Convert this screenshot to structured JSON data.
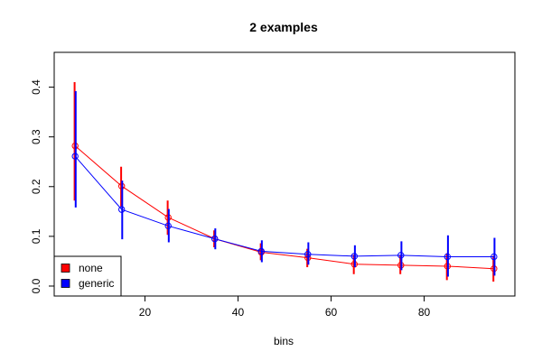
{
  "chart_data": {
    "type": "line",
    "title": "2 examples",
    "xlabel": "bins",
    "ylabel": "",
    "xlim": [
      0.5,
      99.5
    ],
    "ylim": [
      -0.02,
      0.47
    ],
    "x_ticks": [
      20,
      40,
      60,
      80
    ],
    "y_ticks": [
      0.0,
      0.1,
      0.2,
      0.3,
      0.4
    ],
    "x_tick_labels": [
      "20",
      "40",
      "60",
      "80"
    ],
    "y_tick_labels": [
      "0.0",
      "0.1",
      "0.2",
      "0.3",
      "0.4"
    ],
    "grid": false,
    "legend_position": "bottom-left",
    "x": [
      5,
      15,
      25,
      35,
      45,
      55,
      65,
      75,
      85,
      95
    ],
    "series": [
      {
        "name": "none",
        "color": "#ff0000",
        "values": [
          0.282,
          0.201,
          0.138,
          0.095,
          0.068,
          0.057,
          0.044,
          0.042,
          0.04,
          0.035
        ],
        "err_low": [
          0.172,
          0.16,
          0.103,
          0.078,
          0.052,
          0.038,
          0.024,
          0.024,
          0.012,
          0.009
        ],
        "err_high": [
          0.41,
          0.24,
          0.172,
          0.112,
          0.086,
          0.075,
          0.063,
          0.062,
          0.066,
          0.061
        ]
      },
      {
        "name": "generic",
        "color": "#0000ff",
        "values": [
          0.261,
          0.154,
          0.121,
          0.095,
          0.07,
          0.064,
          0.06,
          0.062,
          0.059,
          0.059
        ],
        "err_low": [
          0.158,
          0.094,
          0.088,
          0.074,
          0.048,
          0.043,
          0.038,
          0.032,
          0.019,
          0.021
        ],
        "err_high": [
          0.392,
          0.212,
          0.155,
          0.116,
          0.092,
          0.088,
          0.082,
          0.09,
          0.102,
          0.097
        ]
      }
    ]
  }
}
